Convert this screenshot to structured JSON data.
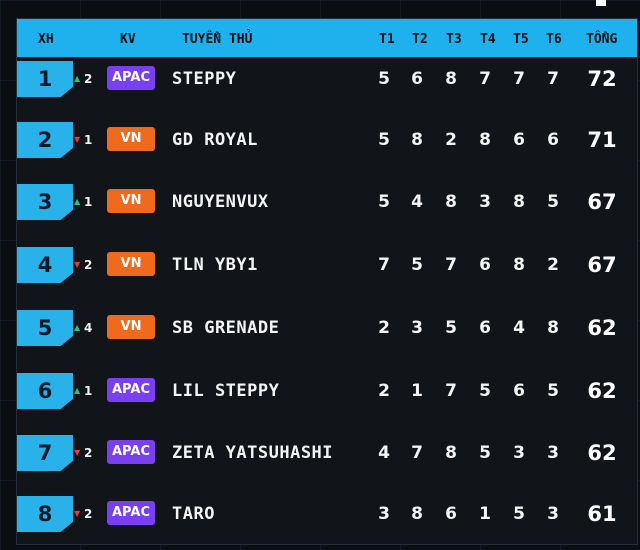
{
  "header": {
    "rank": "XH",
    "region": "KV",
    "player": "TUYỂN THỦ",
    "t1": "T1",
    "t2": "T2",
    "t3": "T3",
    "t4": "T4",
    "t5": "T5",
    "t6": "T6",
    "total": "TỔNG"
  },
  "colors": {
    "accent": "#1fb1ee",
    "apac": "#7a3ff0",
    "vn": "#f06a1e",
    "up": "#2dc07a",
    "down": "#e53b3b"
  },
  "rows": [
    {
      "rank": "1",
      "dir": "up",
      "arrow": "▲",
      "change": "2",
      "region": "APAC",
      "player": "STEPPY",
      "scores": [
        "5",
        "6",
        "8",
        "7",
        "7",
        "7"
      ],
      "total": "72"
    },
    {
      "rank": "2",
      "dir": "down",
      "arrow": "▼",
      "change": "1",
      "region": "VN",
      "player": "GD ROYAL",
      "scores": [
        "5",
        "8",
        "2",
        "8",
        "6",
        "6"
      ],
      "total": "71"
    },
    {
      "rank": "3",
      "dir": "up",
      "arrow": "▲",
      "change": "1",
      "region": "VN",
      "player": "NGUYENVUX",
      "scores": [
        "5",
        "4",
        "8",
        "3",
        "8",
        "5"
      ],
      "total": "67"
    },
    {
      "rank": "4",
      "dir": "down",
      "arrow": "▼",
      "change": "2",
      "region": "VN",
      "player": "TLN YBY1",
      "scores": [
        "7",
        "5",
        "7",
        "6",
        "8",
        "2"
      ],
      "total": "67"
    },
    {
      "rank": "5",
      "dir": "up",
      "arrow": "▲",
      "change": "4",
      "region": "VN",
      "player": "SB GRENADE",
      "scores": [
        "2",
        "3",
        "5",
        "6",
        "4",
        "8"
      ],
      "total": "62"
    },
    {
      "rank": "6",
      "dir": "up",
      "arrow": "▲",
      "change": "1",
      "region": "APAC",
      "player": "LIL STEPPY",
      "scores": [
        "2",
        "1",
        "7",
        "5",
        "6",
        "5"
      ],
      "total": "62"
    },
    {
      "rank": "7",
      "dir": "down",
      "arrow": "▼",
      "change": "2",
      "region": "APAC",
      "player": "ZETA YATSUHASHI",
      "scores": [
        "4",
        "7",
        "8",
        "5",
        "3",
        "3"
      ],
      "total": "62"
    },
    {
      "rank": "8",
      "dir": "down",
      "arrow": "▼",
      "change": "2",
      "region": "APAC",
      "player": "TARO",
      "scores": [
        "3",
        "8",
        "6",
        "1",
        "5",
        "3"
      ],
      "total": "61"
    }
  ]
}
